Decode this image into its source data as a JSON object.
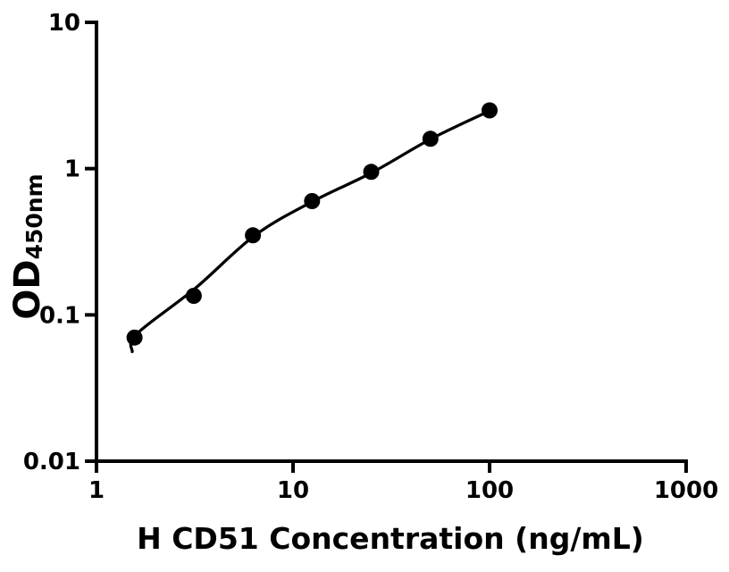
{
  "figure": {
    "xlabel": "H CD51 Concentration (ng/mL)",
    "ylabel_main": "OD",
    "ylabel_sub": "450nm"
  },
  "chart_data": {
    "type": "scatter",
    "subtype": "standard-curve-with-fit",
    "title": "",
    "xlabel": "H CD51 Concentration (ng/mL)",
    "ylabel": "OD450nm",
    "x_scale": "log",
    "y_scale": "log",
    "xlim": [
      1,
      1000
    ],
    "ylim": [
      0.01,
      10
    ],
    "x_ticks": {
      "values": [
        1,
        10,
        100,
        1000
      ],
      "labels": [
        "1",
        "10",
        "100",
        "1000"
      ]
    },
    "y_ticks": {
      "values": [
        0.01,
        0.1,
        1,
        10
      ],
      "labels": [
        "0.01",
        "0.1",
        "1",
        "10"
      ]
    },
    "grid": false,
    "legend": null,
    "marker_color": "#000000",
    "line_color": "#000000",
    "background_color": "#ffffff",
    "series": [
      {
        "name": "standard-points",
        "x": [
          1.5625,
          3.125,
          6.25,
          12.5,
          25,
          50,
          100
        ],
        "y": [
          0.07,
          0.135,
          0.35,
          0.6,
          0.95,
          1.6,
          2.5
        ]
      }
    ],
    "fit_curve": {
      "name": "4pl-fit",
      "x": [
        1.52,
        1.6,
        3.2,
        6.4,
        12.7,
        25.5,
        50.5,
        102
      ],
      "y": [
        0.056,
        0.074,
        0.153,
        0.35,
        0.6,
        0.947,
        1.6,
        2.51
      ]
    }
  }
}
